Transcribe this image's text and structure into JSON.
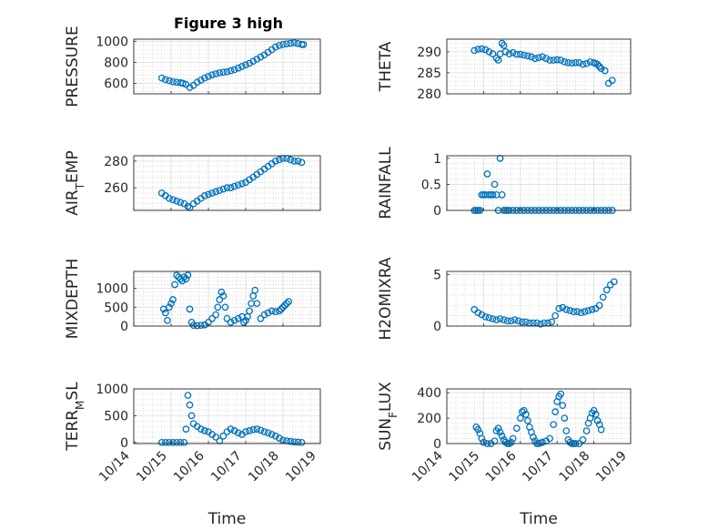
{
  "title": "Figure 3 high",
  "xlabel": "Time",
  "marker_color": "#0072BD",
  "chart_data": [
    {
      "type": "scatter",
      "name": "PRESSURE",
      "ylabel": {
        "text": "PRESSURE"
      },
      "ylim": [
        500,
        1020
      ],
      "yticks": [
        600,
        800,
        1000
      ],
      "grid": true,
      "x": [
        14.75,
        14.85,
        14.95,
        15.05,
        15.15,
        15.25,
        15.32,
        15.4,
        15.5,
        15.6,
        15.7,
        15.8,
        15.9,
        16.0,
        16.1,
        16.2,
        16.3,
        16.4,
        16.5,
        16.6,
        16.7,
        16.8,
        16.9,
        17.0,
        17.1,
        17.2,
        17.3,
        17.4,
        17.5,
        17.6,
        17.7,
        17.8,
        17.9,
        18.0,
        18.1,
        18.2,
        18.3,
        18.4,
        18.5,
        18.55
      ],
      "y": [
        650,
        635,
        625,
        615,
        610,
        605,
        600,
        590,
        560,
        580,
        610,
        630,
        650,
        665,
        680,
        690,
        700,
        705,
        710,
        720,
        730,
        745,
        760,
        775,
        790,
        810,
        830,
        850,
        870,
        895,
        920,
        945,
        960,
        970,
        975,
        980,
        985,
        978,
        970,
        968
      ]
    },
    {
      "type": "scatter",
      "name": "THETA",
      "ylabel": {
        "text": "THETA"
      },
      "ylim": [
        280,
        293
      ],
      "yticks": [
        280,
        285,
        290
      ],
      "grid": true,
      "x": [
        14.75,
        14.85,
        14.95,
        15.05,
        15.15,
        15.25,
        15.35,
        15.4,
        15.45,
        15.5,
        15.55,
        15.6,
        15.7,
        15.8,
        15.9,
        16.0,
        16.1,
        16.2,
        16.3,
        16.4,
        16.5,
        16.6,
        16.7,
        16.8,
        16.9,
        17.0,
        17.1,
        17.2,
        17.3,
        17.4,
        17.5,
        17.6,
        17.7,
        17.8,
        17.9,
        18.0,
        18.05,
        18.1,
        18.15,
        18.2,
        18.3,
        18.4,
        18.5
      ],
      "y": [
        290.3,
        290.6,
        290.7,
        290.5,
        290.0,
        289.5,
        288.5,
        288.0,
        289.5,
        292.0,
        291.5,
        290.0,
        289.5,
        289.8,
        289.4,
        289.4,
        289.2,
        289.0,
        288.8,
        288.4,
        288.6,
        288.8,
        288.4,
        288.0,
        288.0,
        288.1,
        288.0,
        287.6,
        287.4,
        287.3,
        287.4,
        287.4,
        287.0,
        287.2,
        287.6,
        287.4,
        287.2,
        287.0,
        286.5,
        286.0,
        285.5,
        282.5,
        283.2
      ]
    },
    {
      "type": "scatter",
      "name": "AIR_TEMP",
      "ylabel": {
        "base": "AIR",
        "sub": "T",
        "rest": "EMP"
      },
      "ylim": [
        243,
        284
      ],
      "yticks": [
        260,
        280
      ],
      "grid": true,
      "x": [
        14.75,
        14.85,
        14.95,
        15.05,
        15.15,
        15.25,
        15.35,
        15.45,
        15.5,
        15.6,
        15.7,
        15.8,
        15.9,
        16.0,
        16.1,
        16.2,
        16.3,
        16.4,
        16.5,
        16.6,
        16.7,
        16.8,
        16.9,
        17.0,
        17.1,
        17.2,
        17.3,
        17.4,
        17.5,
        17.6,
        17.7,
        17.8,
        17.9,
        18.0,
        18.1,
        18.2,
        18.3,
        18.4,
        18.5
      ],
      "y": [
        256,
        254,
        252,
        251,
        250,
        249,
        248,
        246,
        245,
        248,
        250,
        252,
        254,
        255,
        256,
        257,
        258,
        259,
        260,
        260,
        261,
        262,
        263,
        264,
        266,
        268,
        270,
        272,
        274,
        276,
        278,
        280,
        281,
        282,
        282,
        281,
        280,
        280,
        279
      ]
    },
    {
      "type": "scatter",
      "name": "RAINFALL",
      "ylabel": {
        "text": "RAINFALL"
      },
      "ylim": [
        0,
        1.05
      ],
      "yticks": [
        0,
        0.5,
        1
      ],
      "grid": true,
      "x": [
        14.75,
        14.8,
        14.85,
        14.9,
        14.95,
        15.0,
        15.05,
        15.1,
        15.15,
        15.2,
        15.25,
        15.3,
        15.35,
        15.4,
        15.45,
        15.5,
        15.55,
        15.6,
        15.65,
        15.7,
        15.8,
        15.9,
        16.0,
        16.1,
        16.2,
        16.3,
        16.4,
        16.5,
        16.6,
        16.7,
        16.8,
        16.9,
        17.0,
        17.1,
        17.2,
        17.3,
        17.4,
        17.5,
        17.6,
        17.7,
        17.8,
        17.9,
        18.0,
        18.1,
        18.2,
        18.3,
        18.4,
        18.5
      ],
      "y": [
        0,
        0,
        0,
        0,
        0.3,
        0.3,
        0.3,
        0.7,
        0.3,
        0.3,
        0.3,
        0.5,
        0.3,
        0,
        1.0,
        0.3,
        0,
        0,
        0,
        0,
        0,
        0,
        0,
        0,
        0,
        0,
        0,
        0,
        0,
        0,
        0,
        0,
        0,
        0,
        0,
        0,
        0,
        0,
        0,
        0,
        0,
        0,
        0,
        0,
        0,
        0,
        0,
        0
      ]
    },
    {
      "type": "scatter",
      "name": "MIXDEPTH",
      "ylabel": {
        "text": "MIXDEPTH"
      },
      "ylim": [
        0,
        1450
      ],
      "yticks": [
        0,
        500,
        1000
      ],
      "grid": true,
      "x": [
        14.8,
        14.85,
        14.9,
        14.95,
        15.0,
        15.05,
        15.1,
        15.15,
        15.2,
        15.25,
        15.3,
        15.35,
        15.4,
        15.45,
        15.5,
        15.55,
        15.6,
        15.7,
        15.8,
        15.9,
        16.0,
        16.1,
        16.2,
        16.25,
        16.3,
        16.35,
        16.4,
        16.45,
        16.5,
        16.6,
        16.7,
        16.8,
        16.9,
        16.95,
        17.0,
        17.05,
        17.1,
        17.15,
        17.2,
        17.25,
        17.3,
        17.4,
        17.5,
        17.6,
        17.7,
        17.8,
        17.9,
        17.95,
        18.0,
        18.05,
        18.1,
        18.15
      ],
      "y": [
        450,
        350,
        150,
        500,
        600,
        700,
        1100,
        1350,
        1300,
        1250,
        1200,
        1300,
        1250,
        1350,
        450,
        100,
        20,
        10,
        20,
        30,
        100,
        200,
        300,
        500,
        700,
        900,
        800,
        500,
        200,
        100,
        150,
        200,
        250,
        100,
        150,
        250,
        400,
        600,
        800,
        950,
        600,
        200,
        300,
        350,
        400,
        380,
        400,
        450,
        500,
        550,
        600,
        650
      ]
    },
    {
      "type": "scatter",
      "name": "H2OMIXRA",
      "ylabel": {
        "text": "H2OMIXRA"
      },
      "ylim": [
        0,
        5.3
      ],
      "yticks": [
        0,
        5
      ],
      "grid": true,
      "x": [
        14.75,
        14.85,
        14.95,
        15.05,
        15.15,
        15.25,
        15.35,
        15.45,
        15.55,
        15.65,
        15.75,
        15.85,
        15.95,
        16.05,
        16.15,
        16.25,
        16.35,
        16.45,
        16.55,
        16.65,
        16.75,
        16.85,
        16.95,
        17.05,
        17.15,
        17.25,
        17.35,
        17.45,
        17.55,
        17.65,
        17.75,
        17.85,
        17.95,
        18.05,
        18.15,
        18.25,
        18.35,
        18.45,
        18.55
      ],
      "y": [
        1.6,
        1.3,
        1.1,
        0.9,
        0.8,
        0.7,
        0.6,
        0.7,
        0.6,
        0.5,
        0.5,
        0.6,
        0.5,
        0.4,
        0.4,
        0.3,
        0.3,
        0.3,
        0.2,
        0.3,
        0.3,
        0.4,
        1.0,
        1.7,
        1.8,
        1.6,
        1.5,
        1.4,
        1.4,
        1.3,
        1.4,
        1.5,
        1.6,
        1.7,
        2.0,
        2.8,
        3.5,
        4.0,
        4.3
      ]
    },
    {
      "type": "scatter",
      "name": "TERR_MSL",
      "ylabel": {
        "base": "TERR",
        "sub": "M",
        "rest": "SL"
      },
      "ylim": [
        -20,
        1000
      ],
      "yticks": [
        0,
        500,
        1000
      ],
      "grid": true,
      "x": [
        14.75,
        14.85,
        14.95,
        15.05,
        15.15,
        15.25,
        15.35,
        15.4,
        15.45,
        15.5,
        15.55,
        15.6,
        15.7,
        15.8,
        15.9,
        16.0,
        16.1,
        16.2,
        16.3,
        16.4,
        16.5,
        16.6,
        16.7,
        16.8,
        16.9,
        17.0,
        17.1,
        17.2,
        17.3,
        17.4,
        17.5,
        17.6,
        17.7,
        17.8,
        17.9,
        18.0,
        18.1,
        18.2,
        18.3,
        18.4,
        18.5
      ],
      "y": [
        0,
        0,
        0,
        0,
        0,
        0,
        0,
        250,
        880,
        700,
        500,
        350,
        300,
        250,
        220,
        200,
        150,
        100,
        30,
        120,
        200,
        250,
        220,
        180,
        150,
        200,
        220,
        240,
        250,
        230,
        200,
        180,
        150,
        120,
        80,
        40,
        30,
        20,
        10,
        5,
        0
      ]
    },
    {
      "type": "scatter",
      "name": "SUN_FLUX",
      "ylabel": {
        "base": "SUN",
        "sub": "F",
        "rest": "LUX"
      },
      "ylim": [
        0,
        430
      ],
      "yticks": [
        0,
        200,
        400
      ],
      "grid": true,
      "x": [
        14.8,
        14.85,
        14.9,
        14.95,
        15.0,
        15.1,
        15.2,
        15.3,
        15.35,
        15.4,
        15.45,
        15.5,
        15.55,
        15.6,
        15.65,
        15.7,
        15.75,
        15.8,
        15.9,
        16.0,
        16.05,
        16.1,
        16.15,
        16.2,
        16.25,
        16.3,
        16.35,
        16.4,
        16.45,
        16.5,
        16.55,
        16.6,
        16.7,
        16.8,
        16.9,
        16.95,
        17.0,
        17.05,
        17.1,
        17.15,
        17.2,
        17.25,
        17.3,
        17.35,
        17.4,
        17.45,
        17.5,
        17.6,
        17.7,
        17.8,
        17.85,
        17.9,
        17.95,
        18.0,
        18.05,
        18.1,
        18.15,
        18.2
      ],
      "y": [
        130,
        110,
        80,
        40,
        10,
        0,
        0,
        20,
        100,
        120,
        90,
        60,
        30,
        10,
        0,
        0,
        10,
        40,
        120,
        200,
        250,
        260,
        230,
        180,
        130,
        90,
        50,
        20,
        0,
        0,
        5,
        10,
        20,
        40,
        150,
        250,
        330,
        370,
        390,
        300,
        200,
        100,
        30,
        10,
        0,
        0,
        0,
        0,
        30,
        100,
        160,
        200,
        240,
        260,
        230,
        180,
        150,
        110
      ]
    }
  ]
}
